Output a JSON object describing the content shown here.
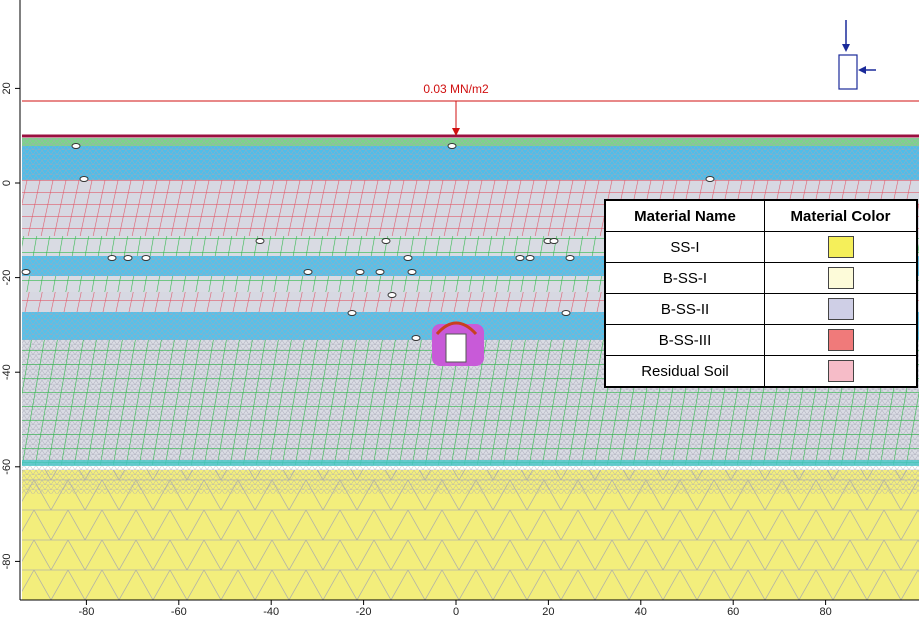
{
  "plot": {
    "x_ticks": [
      "-80",
      "-60",
      "-40",
      "-20",
      "0",
      "20",
      "40",
      "60",
      "80"
    ],
    "y_ticks": [
      "20",
      "0",
      "-20",
      "-40",
      "-60",
      "-80"
    ],
    "load_label": "0.03 MN/m2"
  },
  "legend": {
    "header_name": "Material Name",
    "header_color": "Material Color",
    "rows": [
      {
        "name": "SS-I",
        "color": "#f5ef5a"
      },
      {
        "name": "B-SS-I",
        "color": "#fdfbd9"
      },
      {
        "name": "B-SS-II",
        "color": "#cfcfe6"
      },
      {
        "name": "B-SS-III",
        "color": "#f07a7a"
      },
      {
        "name": "Residual Soil",
        "color": "#f6bcc8"
      }
    ]
  },
  "colors": {
    "mesh_gray": "#a8a8b8",
    "mesh_green": "#2fb84a",
    "mesh_red": "#e05a6a",
    "band_cyan": "#3fb7e6",
    "yellow_soil": "#f3ee7c",
    "load_line": "#d01010",
    "ground_line": "#9a1040"
  }
}
